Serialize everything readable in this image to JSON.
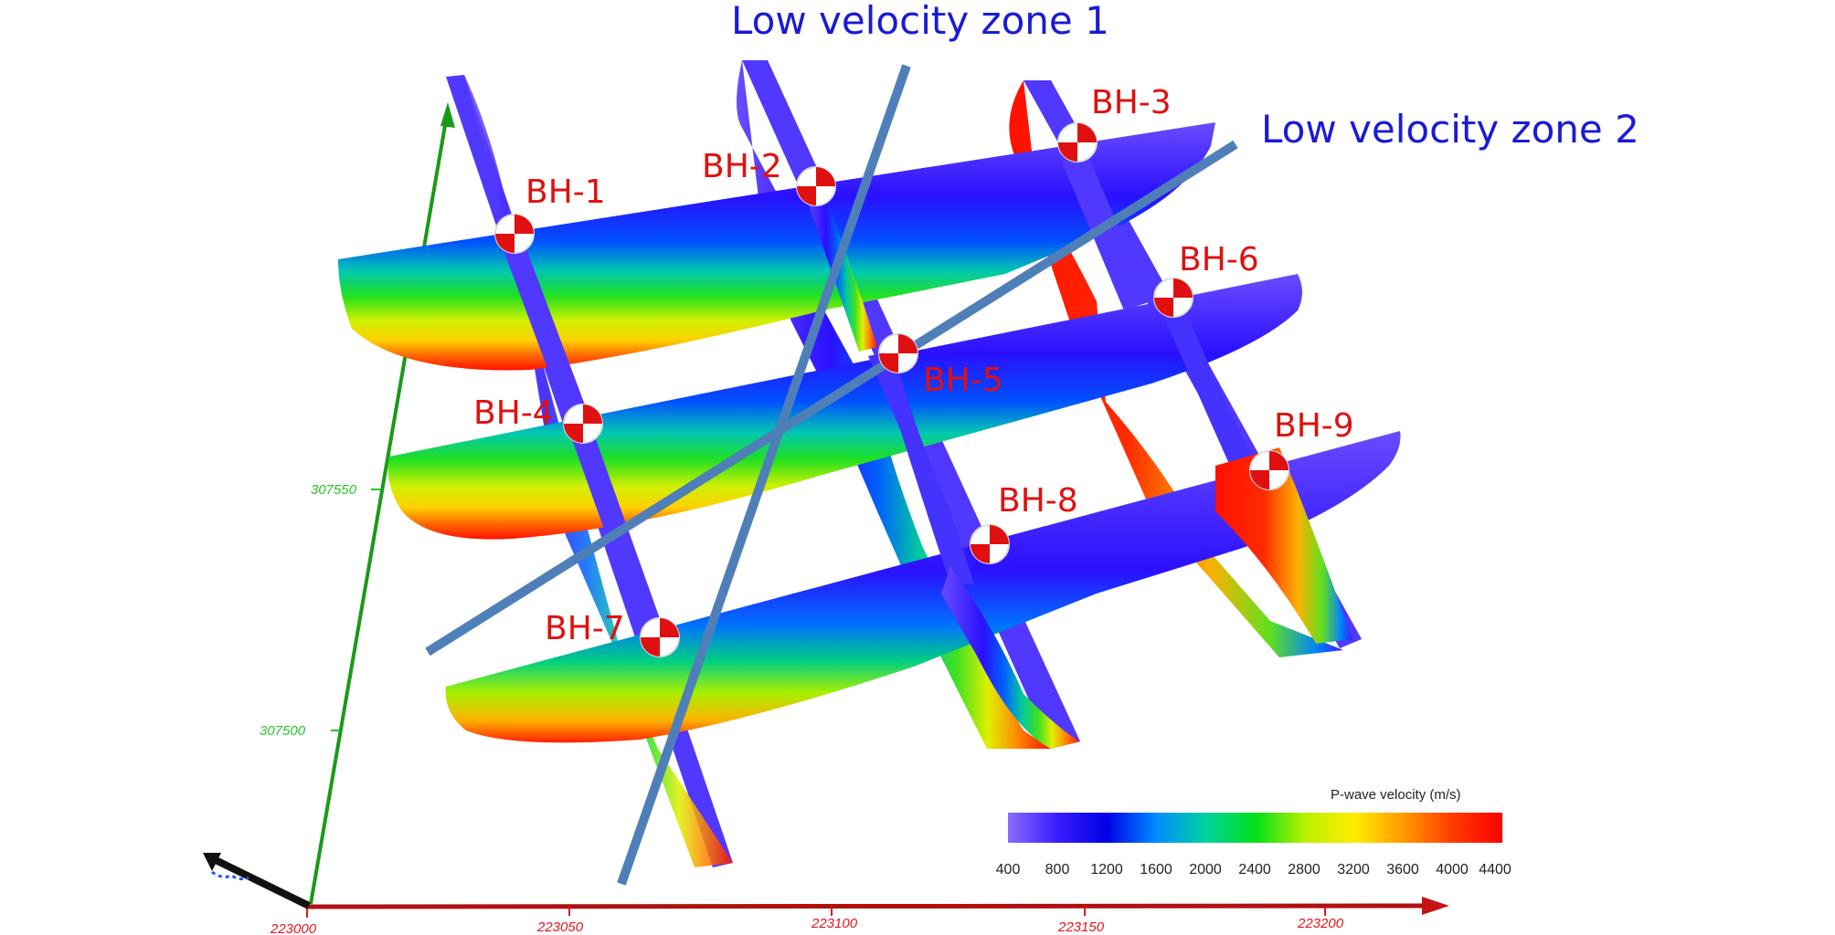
{
  "annotations": {
    "zone1": "Low velocity zone 1",
    "zone2": "Low velocity zone 2"
  },
  "boreholes": [
    "BH-1",
    "BH-2",
    "BH-3",
    "BH-4",
    "BH-5",
    "BH-6",
    "BH-7",
    "BH-8",
    "BH-9"
  ],
  "axes": {
    "x_ticks": [
      "223000",
      "223050",
      "223100",
      "223150",
      "223200"
    ],
    "y_ticks": [
      "307500",
      "307550"
    ],
    "x_color": "#e8141c",
    "y_color": "#27c427"
  },
  "colorbar": {
    "title": "P-wave velocity (m/s)",
    "ticks": [
      "400",
      "800",
      "1200",
      "1600",
      "2000",
      "2400",
      "2800",
      "3200",
      "3600",
      "4000",
      "4400"
    ],
    "colors": [
      "#8a6cff",
      "#3a1cff",
      "#0000e6",
      "#008cff",
      "#00d2a0",
      "#00e01a",
      "#b8f000",
      "#ffee00",
      "#ff9a00",
      "#ff3a00",
      "#ff0000"
    ]
  },
  "colors": {
    "zone_line": "#4f7fb8",
    "zone_text": "#1a1ad6",
    "borehole_text": "#e01010",
    "low_velocity": "#5a3cff",
    "high_velocity": "#ff1200"
  }
}
